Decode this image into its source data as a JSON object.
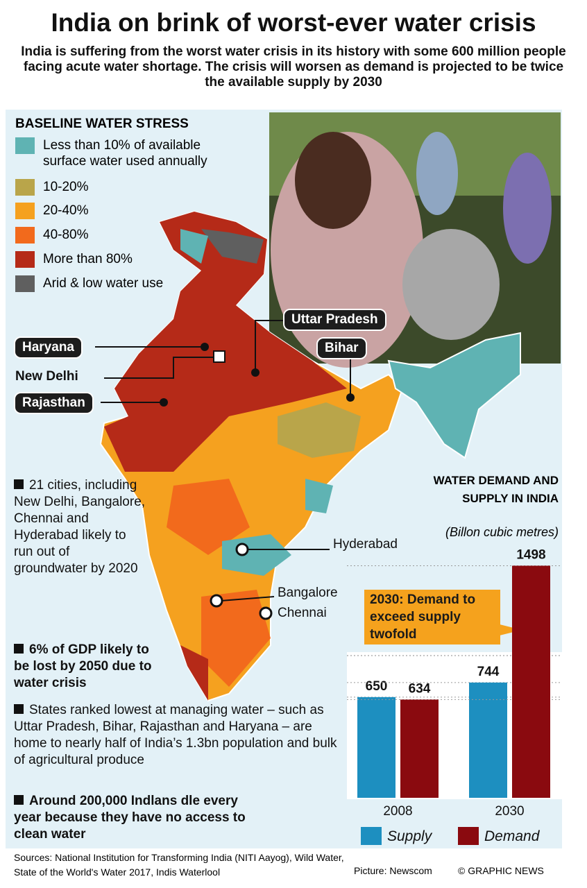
{
  "header": {
    "title": "India on brink of worst-ever water crisis",
    "subtitle": "India is suffering from the worst water crisis in its history with some 600 million people facing acute water shortage. The crisis will worsen as demand is projected to be twice the available supply by 2030"
  },
  "legend": {
    "title": "Baseline Water Stress",
    "items": [
      {
        "label": "Less than 10% of available surface water used annually",
        "color": "#5fb3b3"
      },
      {
        "label": "10-20%",
        "color": "#b9a54a"
      },
      {
        "label": "20-40%",
        "color": "#f5a11f"
      },
      {
        "label": "40-80%",
        "color": "#f26a1c"
      },
      {
        "label": "More than 80%",
        "color": "#b52a18"
      },
      {
        "label": "Arid & low water use",
        "color": "#5f5f5f"
      }
    ]
  },
  "map_labels": {
    "uttar_pradesh": "Uttar Pradesh",
    "bihar": "Bihar",
    "haryana": "Haryana",
    "new_delhi": "New Delhi",
    "rajasthan": "Rajasthan",
    "hyderabad": "Hyderabad",
    "bangalore": "Bangalore",
    "chennai": "Chennai"
  },
  "notes": [
    "21 cities, including New Delhi, Bangalore, Chennai and Hyderabad likely to run out of groundwater by 2020",
    "6% of GDP likely to be lost by 2050 due to water crisis",
    "States ranked lowest at managing water – such as Uttar Pradesh, Bihar, Rajasthan and Haryana – are home to nearly half of India’s 1.3bn population and bulk of agricultural produce",
    "Around 200,000 Indlans dle every year because they have no access to clean water"
  ],
  "chart_data": {
    "type": "bar",
    "title": "Water Demand and Supply in India",
    "subtitle": "(Billon cubic metres)",
    "categories": [
      "2008",
      "2030"
    ],
    "series": [
      {
        "name": "Supply",
        "color": "#1d8fc0",
        "values": [
          650,
          744
        ]
      },
      {
        "name": "Demand",
        "color": "#8a0a0f",
        "values": [
          634,
          1498
        ]
      }
    ],
    "value_labels_shown": true,
    "ylim": [
      0,
      1500
    ],
    "annotation": "2030: Demand to exceed supply twofold"
  },
  "footer": {
    "sources": "Sources: National Institution for Transforming India (NITI Aayog), Wild Water, State of the World's Water 2017, Indis Waterlool",
    "picture": "Picture: Newscom",
    "credit": "© GRAPHIC NEWS"
  }
}
